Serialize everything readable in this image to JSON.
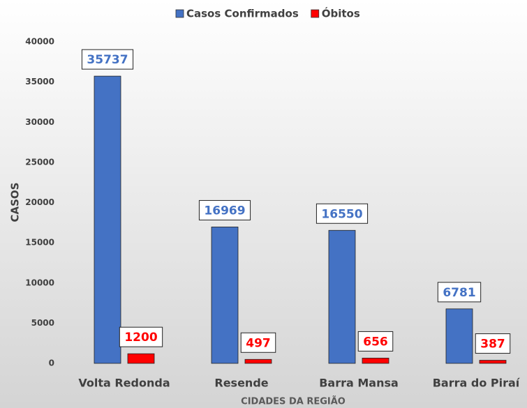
{
  "chart_data": {
    "type": "bar",
    "categories": [
      "Volta Redonda",
      "Resende",
      "Barra Mansa",
      "Barra do Piraí"
    ],
    "series": [
      {
        "name": "Casos Confirmados",
        "color": "#4472c4",
        "values": [
          35737,
          16969,
          16550,
          6781
        ]
      },
      {
        "name": "Óbitos",
        "color": "#ff0000",
        "values": [
          1200,
          497,
          656,
          387
        ]
      }
    ],
    "ylabel": "CASOS",
    "xlabel": "CIDADES DA REGIÃO",
    "ylim": [
      0,
      40000
    ],
    "yticks": [
      0,
      5000,
      10000,
      15000,
      20000,
      25000,
      30000,
      35000,
      40000
    ],
    "legend": "top",
    "grid": false
  }
}
